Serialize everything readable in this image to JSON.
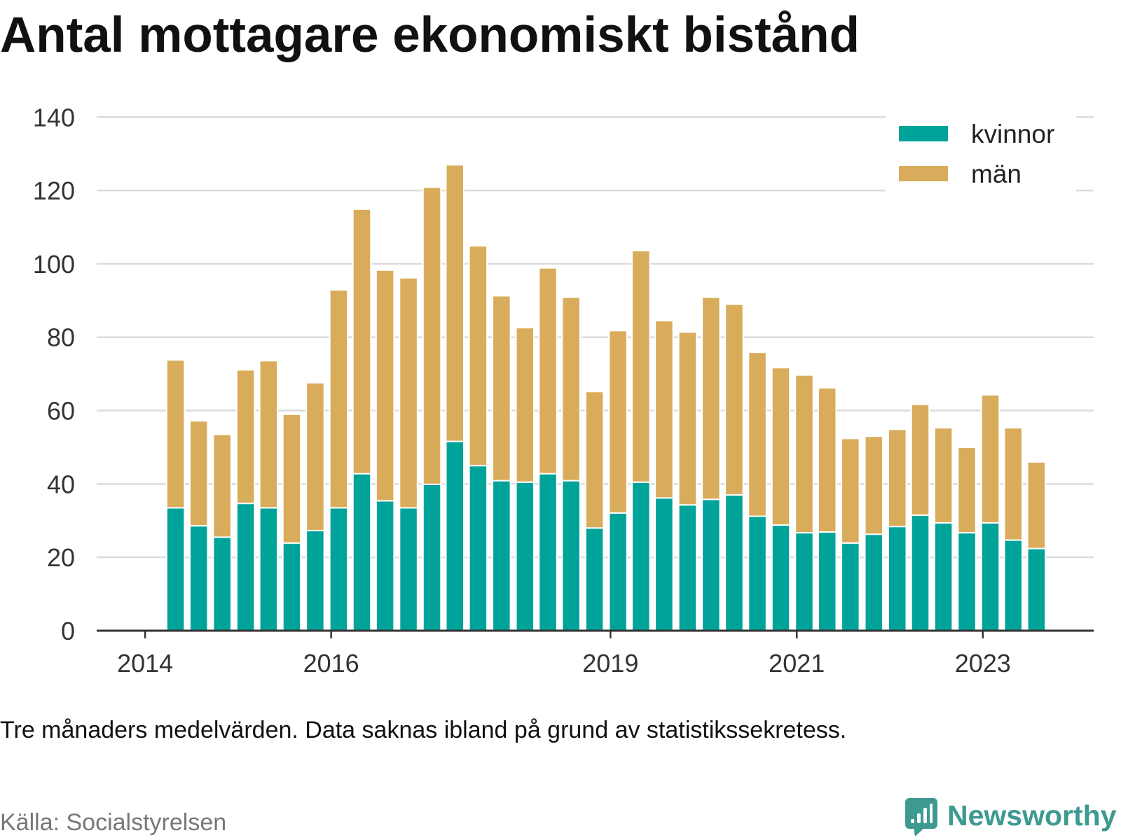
{
  "chart_data": {
    "type": "bar",
    "stacked": true,
    "title": "Antal mottagare ekonomiskt bistånd",
    "x": [
      "2014-04-01",
      "2014-07-01",
      "2014-10-01",
      "2015-01-01",
      "2015-04-01",
      "2015-07-01",
      "2015-10-01",
      "2016-01-01",
      "2016-04-01",
      "2016-07-01",
      "2016-10-01",
      "2017-01-01",
      "2017-04-01",
      "2017-07-01",
      "2017-10-01",
      "2018-01-01",
      "2018-04-01",
      "2018-07-01",
      "2018-10-01",
      "2019-01-01",
      "2019-04-01",
      "2019-07-01",
      "2019-10-01",
      "2020-01-01",
      "2020-04-01",
      "2020-07-01",
      "2020-10-01",
      "2021-01-01",
      "2021-04-01",
      "2021-07-01",
      "2021-10-01",
      "2022-01-01",
      "2022-04-01",
      "2022-07-01",
      "2022-10-01",
      "2023-01-01",
      "2023-04-01",
      "2023-07-01"
    ],
    "series": [
      {
        "name": "kvinnor",
        "color": "#00a39a",
        "values": [
          33.5,
          28.6,
          25.5,
          34.7,
          33.5,
          23.9,
          27.3,
          33.5,
          42.8,
          35.4,
          33.5,
          39.9,
          51.6,
          45.0,
          40.9,
          40.5,
          42.8,
          40.9,
          28.0,
          32.1,
          40.5,
          36.2,
          34.3,
          35.8,
          37.0,
          31.2,
          28.8,
          26.7,
          26.9,
          23.9,
          26.3,
          28.4,
          31.5,
          29.4,
          26.7,
          29.4,
          24.7,
          22.4
        ]
      },
      {
        "name": "män",
        "color": "#d9ac5b",
        "values": [
          40.3,
          28.6,
          28.0,
          36.4,
          40.1,
          35.1,
          40.3,
          59.4,
          72.1,
          62.9,
          62.7,
          81.0,
          75.4,
          59.9,
          50.4,
          42.1,
          56.1,
          50.0,
          37.2,
          49.7,
          63.1,
          48.3,
          47.1,
          55.1,
          52.0,
          44.7,
          42.9,
          43.0,
          39.3,
          28.5,
          26.7,
          26.5,
          30.2,
          25.9,
          23.3,
          34.9,
          30.6,
          23.6
        ]
      }
    ],
    "xlim": [
      "2013-06-25",
      "2024-03-11"
    ],
    "ylim": [
      0,
      140
    ],
    "x_ticks": [
      "2014",
      "2016",
      "2019",
      "2021",
      "2023"
    ],
    "y_ticks": [
      0,
      20,
      40,
      60,
      80,
      100,
      120,
      140
    ],
    "grid": true,
    "legend_position": "top-right"
  },
  "footer": {
    "note": "Tre månaders medelvärden. Data saknas ibland på grund av statistikssekretess.",
    "source": "Källa: Socialstyrelsen"
  },
  "brand": {
    "name": "Newsworthy",
    "icon": "newsworthy-logo-icon",
    "color": "#3d9a91"
  }
}
